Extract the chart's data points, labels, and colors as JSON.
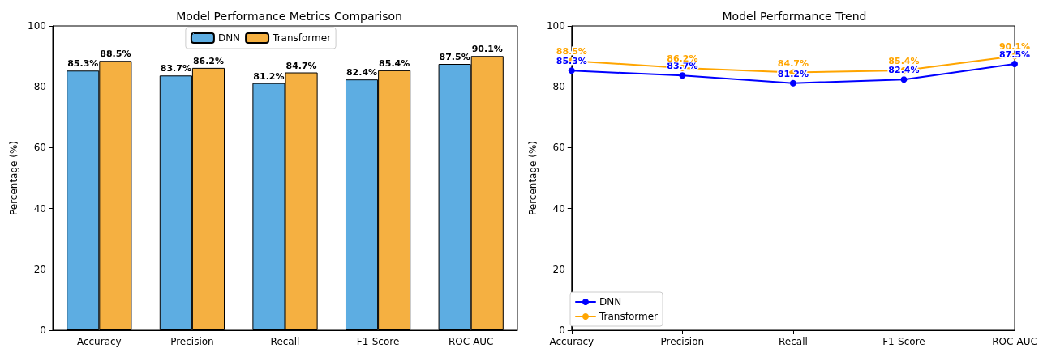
{
  "chart_data": [
    {
      "type": "bar",
      "title": "Model Performance Metrics Comparison",
      "ylabel": "Percentage (%)",
      "categories": [
        "Accuracy",
        "Precision",
        "Recall",
        "F1-Score",
        "ROC-AUC"
      ],
      "series": [
        {
          "name": "DNN",
          "color": "#5dade2",
          "values": [
            85.3,
            83.7,
            81.2,
            82.4,
            87.5
          ],
          "value_labels": [
            "85.3%",
            "83.7%",
            "81.2%",
            "82.4%",
            "87.5%"
          ]
        },
        {
          "name": "Transformer",
          "color": "#f5b041",
          "values": [
            88.5,
            86.2,
            84.7,
            85.4,
            90.1
          ],
          "value_labels": [
            "88.5%",
            "86.2%",
            "84.7%",
            "85.4%",
            "90.1%"
          ]
        }
      ],
      "ylim": [
        0,
        100
      ],
      "yticks": [
        0,
        20,
        40,
        60,
        80,
        100
      ],
      "grid": false,
      "legend": "top"
    },
    {
      "type": "line",
      "title": "Model Performance Trend",
      "ylabel": "Percentage (%)",
      "categories": [
        "Accuracy",
        "Precision",
        "Recall",
        "F1-Score",
        "ROC-AUC"
      ],
      "series": [
        {
          "name": "DNN",
          "color": "#0000ff",
          "values": [
            85.3,
            83.7,
            81.2,
            82.4,
            87.5
          ],
          "value_labels": [
            "85.3%",
            "83.7%",
            "81.2%",
            "82.4%",
            "87.5%"
          ]
        },
        {
          "name": "Transformer",
          "color": "#ffa500",
          "values": [
            88.5,
            86.2,
            84.7,
            85.4,
            90.1
          ],
          "value_labels": [
            "88.5%",
            "86.2%",
            "84.7%",
            "85.4%",
            "90.1%"
          ]
        }
      ],
      "ylim": [
        0,
        100
      ],
      "yticks": [
        0,
        20,
        40,
        60,
        80,
        100
      ],
      "grid": false,
      "legend": "bottom left",
      "marker": "circle",
      "line_style": "solid"
    }
  ]
}
